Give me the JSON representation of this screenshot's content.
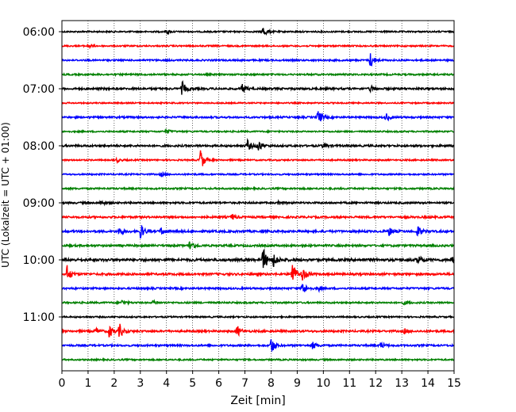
{
  "chart_data": {
    "type": "line",
    "title": "",
    "xlabel": "Zeit  [min]",
    "ylabel": "UTC (Lokalzeit = UTC + 01:00)",
    "xlim": [
      0,
      15
    ],
    "x_ticks": [
      "0",
      "1",
      "2",
      "3",
      "4",
      "5",
      "6",
      "7",
      "8",
      "9",
      "10",
      "11",
      "12",
      "13",
      "14",
      "15"
    ],
    "y_ticks": [
      {
        "label": "06:00",
        "trace": 0
      },
      {
        "label": "07:00",
        "trace": 4
      },
      {
        "label": "08:00",
        "trace": 8
      },
      {
        "label": "09:00",
        "trace": 12
      },
      {
        "label": "10:00",
        "trace": 16
      },
      {
        "label": "11:00",
        "trace": 20
      }
    ],
    "grid": "vertical dotted at each minute",
    "trace_minutes": 15,
    "trace_colors": [
      "#000000",
      "#ff0000",
      "#0000ff",
      "#008000"
    ],
    "traces": [
      {
        "start": "06:00",
        "color": "#000000",
        "noise": 0.9,
        "events": [
          [
            7.7,
            7
          ],
          [
            4.0,
            2.5
          ]
        ]
      },
      {
        "start": "06:15",
        "color": "#ff0000",
        "noise": 0.9,
        "events": [
          [
            1.0,
            2.5
          ]
        ]
      },
      {
        "start": "06:30",
        "color": "#0000ff",
        "noise": 1.0,
        "events": [
          [
            11.8,
            10
          ]
        ]
      },
      {
        "start": "06:45",
        "color": "#008000",
        "noise": 1.0,
        "events": []
      },
      {
        "start": "07:00",
        "color": "#000000",
        "noise": 1.2,
        "events": [
          [
            4.6,
            9
          ],
          [
            6.9,
            6
          ],
          [
            11.8,
            4
          ]
        ]
      },
      {
        "start": "07:15",
        "color": "#ff0000",
        "noise": 0.8,
        "events": []
      },
      {
        "start": "07:30",
        "color": "#0000ff",
        "noise": 1.1,
        "events": [
          [
            9.8,
            10
          ],
          [
            12.4,
            5
          ]
        ]
      },
      {
        "start": "07:45",
        "color": "#008000",
        "noise": 0.9,
        "events": [
          [
            4.0,
            2.5
          ]
        ]
      },
      {
        "start": "08:00",
        "color": "#000000",
        "noise": 1.2,
        "events": [
          [
            7.1,
            7
          ],
          [
            7.5,
            8
          ],
          [
            10.0,
            3
          ]
        ]
      },
      {
        "start": "08:15",
        "color": "#ff0000",
        "noise": 0.9,
        "events": [
          [
            5.3,
            14
          ],
          [
            2.1,
            2.5
          ]
        ]
      },
      {
        "start": "08:30",
        "color": "#0000ff",
        "noise": 0.9,
        "events": [
          [
            3.8,
            2.5
          ]
        ]
      },
      {
        "start": "08:45",
        "color": "#008000",
        "noise": 1.0,
        "events": []
      },
      {
        "start": "09:00",
        "color": "#000000",
        "noise": 1.1,
        "events": [
          [
            1.5,
            2.5
          ],
          [
            8.3,
            2.5
          ]
        ]
      },
      {
        "start": "09:15",
        "color": "#ff0000",
        "noise": 1.2,
        "events": [
          [
            6.5,
            4
          ]
        ]
      },
      {
        "start": "09:30",
        "color": "#0000ff",
        "noise": 1.3,
        "events": [
          [
            3.0,
            10
          ],
          [
            2.2,
            5
          ],
          [
            3.8,
            5
          ],
          [
            12.5,
            6
          ],
          [
            13.6,
            7
          ]
        ]
      },
      {
        "start": "09:45",
        "color": "#008000",
        "noise": 1.2,
        "events": [
          [
            4.9,
            8
          ]
        ]
      },
      {
        "start": "10:00",
        "color": "#000000",
        "noise": 1.6,
        "events": [
          [
            7.7,
            16
          ],
          [
            8.1,
            8
          ],
          [
            13.6,
            7
          ],
          [
            14.9,
            5
          ]
        ]
      },
      {
        "start": "10:15",
        "color": "#ff0000",
        "noise": 1.3,
        "events": [
          [
            0.2,
            11
          ],
          [
            8.8,
            17
          ],
          [
            9.2,
            8
          ]
        ]
      },
      {
        "start": "10:30",
        "color": "#0000ff",
        "noise": 1.1,
        "events": [
          [
            9.2,
            9
          ],
          [
            9.8,
            3
          ]
        ]
      },
      {
        "start": "10:45",
        "color": "#008000",
        "noise": 1.0,
        "events": [
          [
            2.3,
            3
          ],
          [
            3.5,
            2.5
          ],
          [
            13.1,
            2.5
          ]
        ]
      },
      {
        "start": "11:00",
        "color": "#000000",
        "noise": 0.9,
        "events": []
      },
      {
        "start": "11:15",
        "color": "#ff0000",
        "noise": 1.2,
        "events": [
          [
            1.8,
            8
          ],
          [
            2.2,
            9
          ],
          [
            1.3,
            4
          ],
          [
            6.7,
            7
          ],
          [
            13.1,
            3
          ]
        ]
      },
      {
        "start": "11:30",
        "color": "#0000ff",
        "noise": 1.1,
        "events": [
          [
            8.0,
            11
          ],
          [
            9.6,
            5
          ],
          [
            12.2,
            4
          ]
        ]
      },
      {
        "start": "11:45",
        "color": "#008000",
        "noise": 0.9,
        "events": []
      }
    ]
  }
}
